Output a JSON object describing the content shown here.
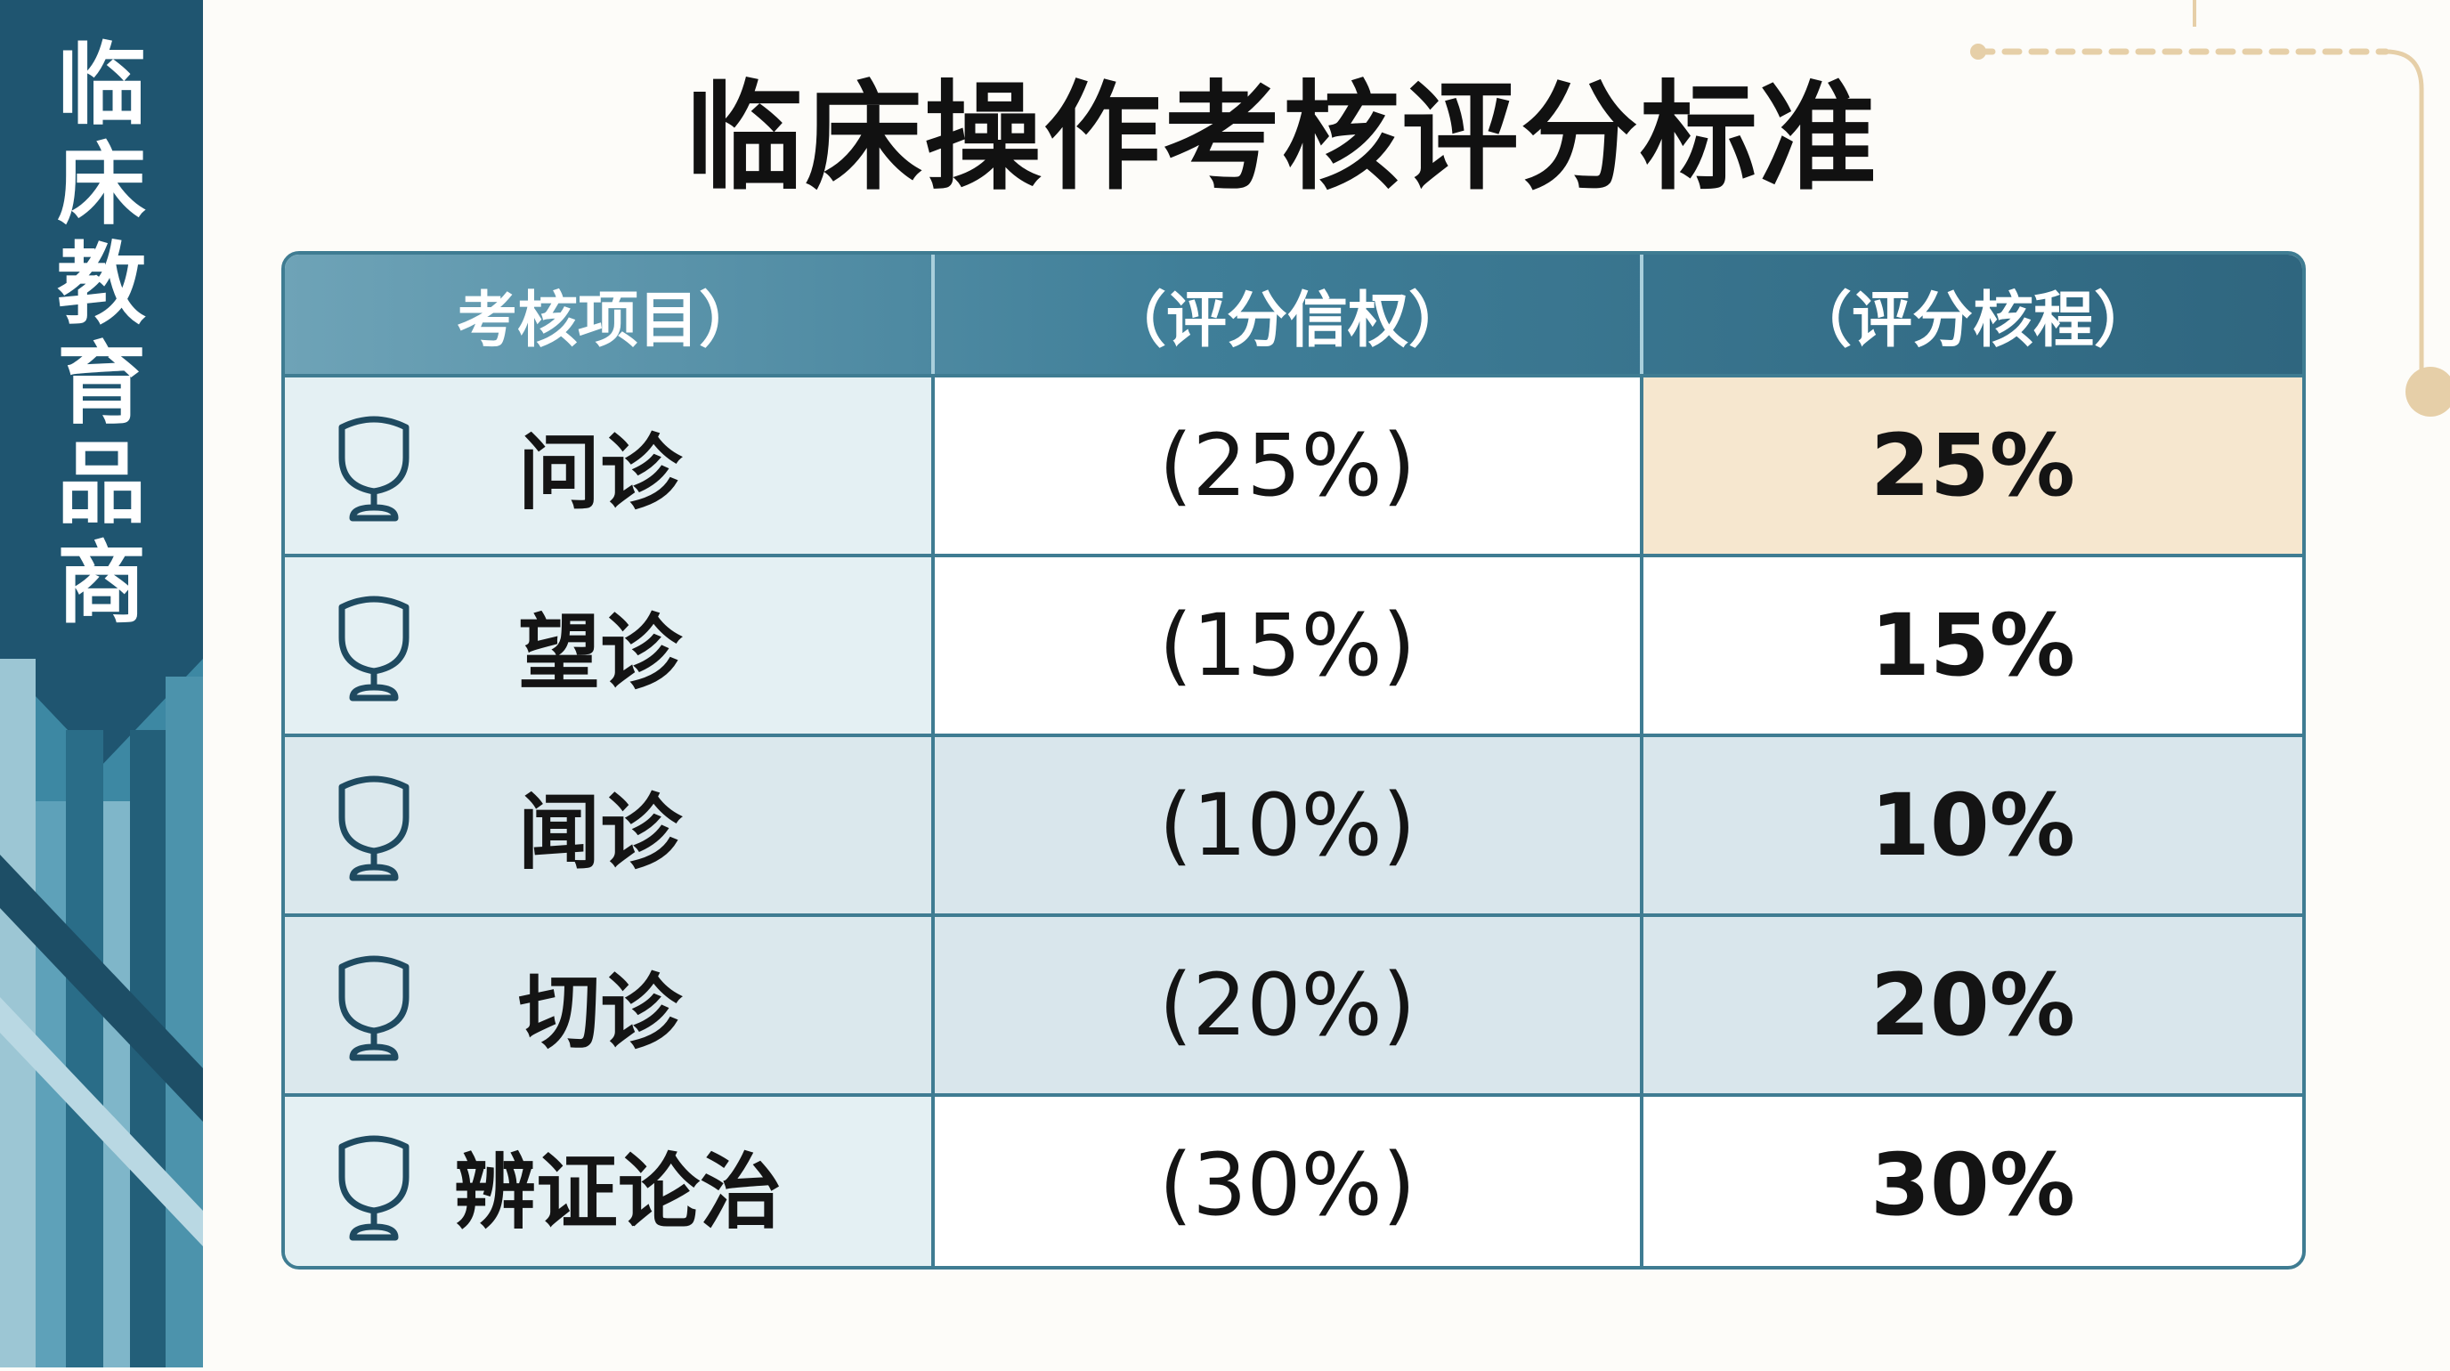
{
  "side_title": [
    "临",
    "床",
    "教",
    "育",
    "品",
    "商"
  ],
  "page_title": "临床操作考核评分标准",
  "table": {
    "headers": [
      "考核项目）",
      "（评分信权）",
      "（评分核程）"
    ],
    "rows": [
      {
        "icon": "trophy-icon",
        "item": "问诊",
        "weight": "(25%)",
        "score": "25%"
      },
      {
        "icon": "trophy-icon",
        "item": "望诊",
        "weight": "(15%)",
        "score": "15%"
      },
      {
        "icon": "trophy-icon",
        "item": "闻诊",
        "weight": "(10%)",
        "score": "10%"
      },
      {
        "icon": "trophy-icon",
        "item": "切诊",
        "weight": "(20%)",
        "score": "20%"
      },
      {
        "icon": "trophy-icon",
        "item": "辨证论治",
        "weight": "(30%)",
        "score": "30%"
      }
    ]
  },
  "colors": {
    "accent_dark": "#1f5570",
    "accent_mid": "#3f7c92",
    "highlight": "#f6e7cf",
    "corner_gold": "#e6cfa8"
  }
}
